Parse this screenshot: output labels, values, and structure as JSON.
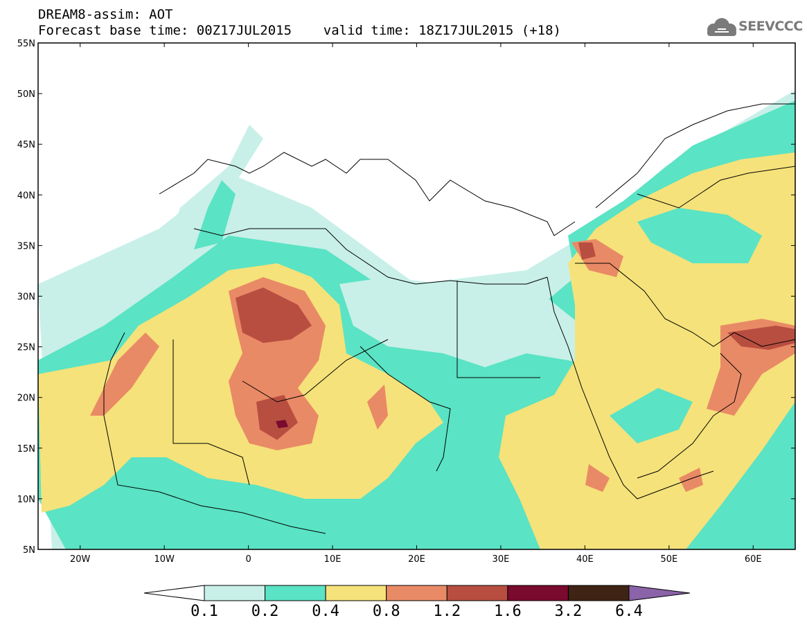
{
  "header": {
    "line1": "DREAM8-assim: AOT",
    "line2": "Forecast base time: 00Z17JUL2015    valid time: 18Z17JUL2015 (+18)"
  },
  "logo": {
    "text": "SEEVCCC",
    "icon": "cloud-icon",
    "color": "#7a7a7a"
  },
  "map": {
    "field": "AOT",
    "lon_range": [
      -25,
      65
    ],
    "lat_range": [
      5,
      55
    ],
    "lat_labels": [
      "55N",
      "50N",
      "45N",
      "40N",
      "35N",
      "30N",
      "25N",
      "20N",
      "15N",
      "10N",
      "5N"
    ],
    "lon_labels": [
      "20W",
      "10W",
      "0",
      "10E",
      "20E",
      "30E",
      "40E",
      "50E",
      "60E"
    ]
  },
  "colorbar": {
    "levels": [
      "0.1",
      "0.2",
      "0.4",
      "0.8",
      "1.2",
      "1.6",
      "3.2",
      "6.4"
    ],
    "colors": [
      "#ffffff",
      "#c8f0e8",
      "#5ae3c4",
      "#f5e27a",
      "#e98a66",
      "#b84e40",
      "#7a0a2e",
      "#3f2314",
      "#8a63a8"
    ]
  }
}
